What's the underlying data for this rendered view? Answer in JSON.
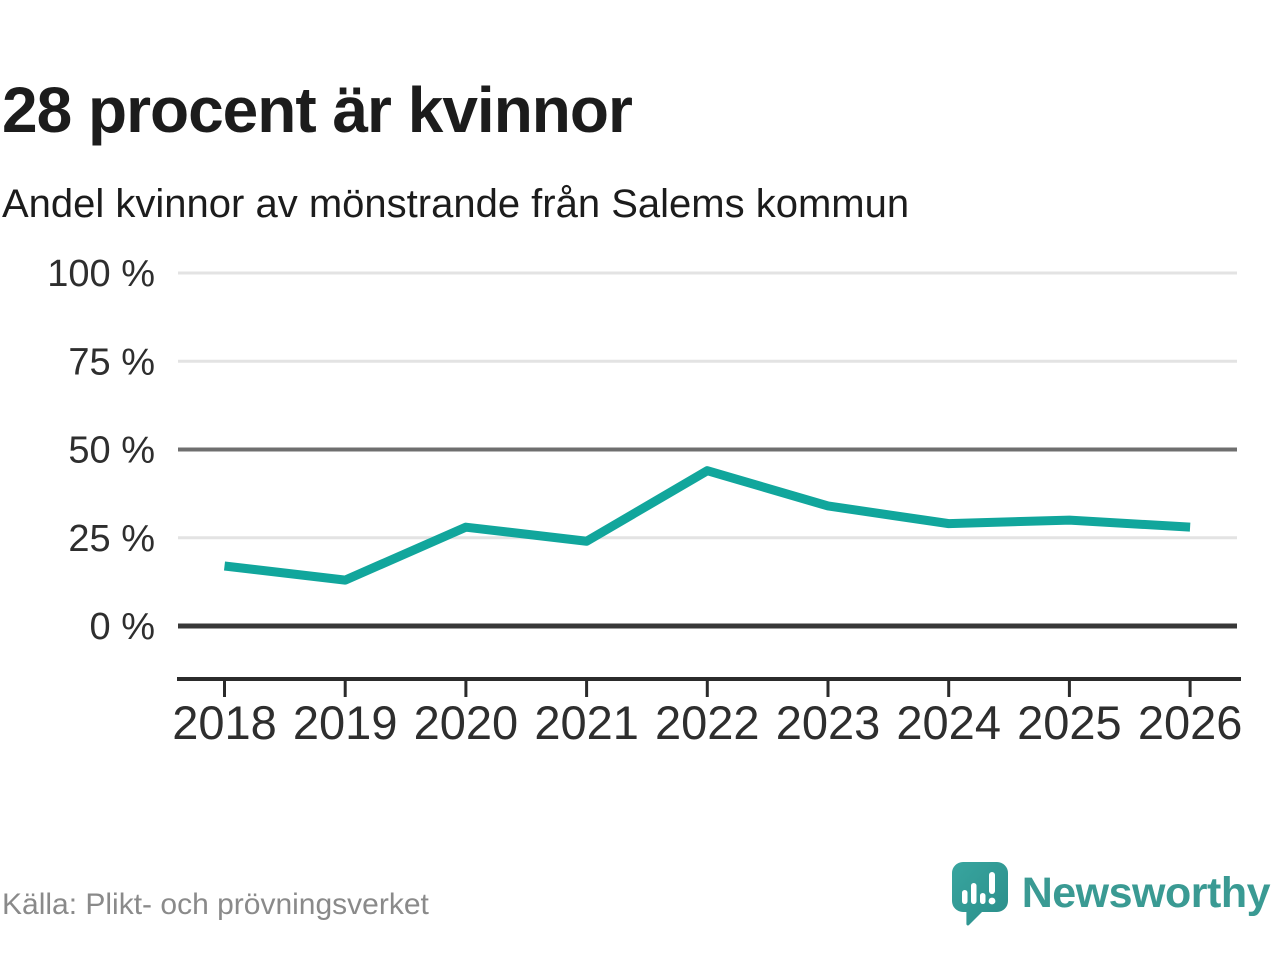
{
  "header": {
    "title": "28 procent är kvinnor",
    "subtitle": "Andel kvinnor av mönstrande från Salems kommun"
  },
  "chart_data": {
    "type": "line",
    "title": "28 procent är kvinnor",
    "subtitle": "Andel kvinnor av mönstrande från Salems kommun",
    "x": [
      "2018",
      "2019",
      "2020",
      "2021",
      "2022",
      "2023",
      "2024",
      "2025",
      "2026"
    ],
    "series": [
      {
        "name": "Andel kvinnor av mönstrande",
        "color": "#11a69c",
        "values": [
          17,
          13,
          28,
          24,
          44,
          34,
          29,
          30,
          28
        ]
      }
    ],
    "ylim": [
      0,
      100
    ],
    "yticks": [
      0,
      25,
      50,
      75,
      100
    ],
    "ytick_label_suffix": " %",
    "xlabel": "",
    "ylabel": "",
    "grid": "horizontal",
    "emphasized_gridlines": [
      0,
      50
    ],
    "legend": "none"
  },
  "footer": {
    "source": "Källa: Plikt- och prövningsverket"
  },
  "logo": {
    "brand": "Newsworthy",
    "color": "#3a9a93",
    "icon": "speech-bubble-bar-chart-exclamation"
  },
  "colors": {
    "line": "#11a69c",
    "grid_light": "#e3e3e3",
    "grid_dark": "#6f6f6f",
    "axis": "#2b2b2b",
    "text": "#1c1c1c",
    "muted": "#8a8a8a"
  }
}
